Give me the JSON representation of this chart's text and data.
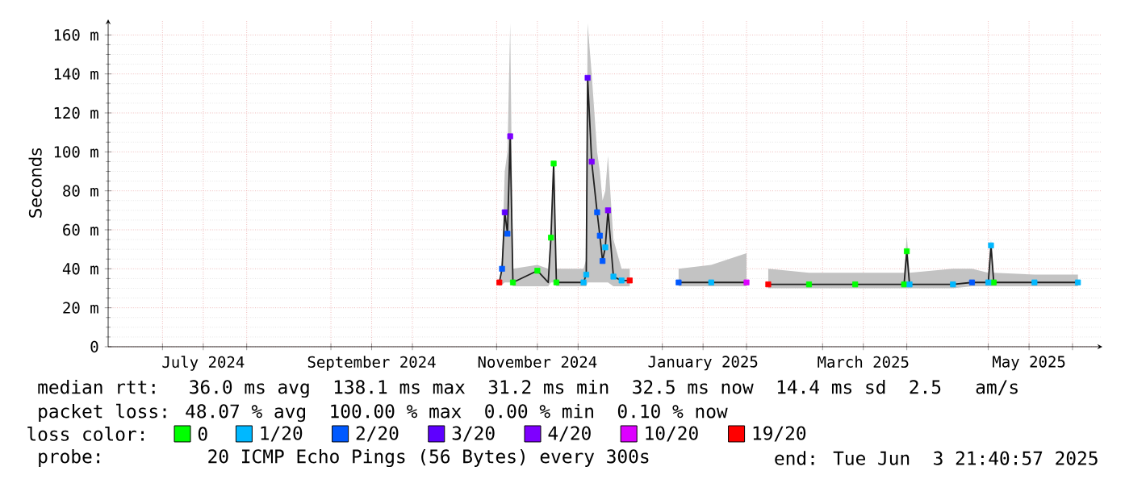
{
  "chart_data": {
    "type": "line",
    "ylabel": "Seconds",
    "legend_title": "loss color:",
    "legend": "bottom",
    "grid": true,
    "xlim": [
      "2024-06-11",
      "2025-06-12"
    ],
    "xticks": [
      {
        "value": "2024-07-01",
        "label": null
      },
      {
        "value": "2024-07-16",
        "label": "July 2024"
      },
      {
        "value": "2024-08-01",
        "label": null
      },
      {
        "value": "2024-09-01",
        "label": null
      },
      {
        "value": "2024-09-16",
        "label": "September 2024"
      },
      {
        "value": "2024-10-01",
        "label": null
      },
      {
        "value": "2024-11-01",
        "label": null
      },
      {
        "value": "2024-11-16",
        "label": "November 2024"
      },
      {
        "value": "2024-12-01",
        "label": null
      },
      {
        "value": "2025-01-01",
        "label": null
      },
      {
        "value": "2025-01-16",
        "label": "January 2025"
      },
      {
        "value": "2025-02-01",
        "label": null
      },
      {
        "value": "2025-03-01",
        "label": null
      },
      {
        "value": "2025-03-16",
        "label": "March 2025"
      },
      {
        "value": "2025-04-01",
        "label": null
      },
      {
        "value": "2025-05-01",
        "label": null
      },
      {
        "value": "2025-05-16",
        "label": "May 2025"
      },
      {
        "value": "2025-06-01",
        "label": null
      }
    ],
    "ylim": [
      0,
      168
    ],
    "yticks": [
      0,
      {
        "value": 20,
        "label": "20 m"
      },
      {
        "value": 40,
        "label": "40 m"
      },
      {
        "value": 60,
        "label": "60 m"
      },
      {
        "value": 80,
        "label": "80 m"
      },
      {
        "value": 100,
        "label": "100 m"
      },
      {
        "value": 120,
        "label": "120 m"
      },
      {
        "value": 140,
        "label": "140 m"
      },
      {
        "value": 160,
        "label": "160 m"
      }
    ],
    "series": [
      {
        "color": "#202020",
        "marker": "none",
        "x": [
          "2024-11-02",
          "2024-11-03",
          "2024-11-04",
          "2024-11-05",
          "2024-11-06",
          "2024-11-07",
          "2024-11-16",
          "2024-11-20",
          "2024-11-21",
          "2024-11-22",
          "2024-11-23",
          "2024-12-03",
          "2024-12-04",
          "2024-12-04T12:00",
          "2024-12-06",
          "2024-12-08",
          "2024-12-09",
          "2024-12-10",
          "2024-12-11",
          "2024-12-12",
          "2024-12-14",
          "2024-12-17",
          "2024-12-20",
          "2024-12-28",
          "2025-01-07",
          "2025-01-19",
          "2025-02-01",
          "2025-02-05",
          "2025-02-09",
          "2025-02-24",
          "2025-03-13",
          "2025-03-31",
          "2025-04-01",
          "2025-04-02",
          "2025-04-18",
          "2025-04-25",
          "2025-05-01",
          "2025-05-02",
          "2025-05-03",
          "2025-05-18",
          "2025-06-03"
        ],
        "values": [
          33,
          40,
          69,
          58,
          108,
          33,
          39,
          33,
          56,
          94,
          33,
          33,
          37,
          138,
          95,
          69,
          57,
          44,
          51,
          70,
          36,
          34,
          34,
          null,
          33,
          33,
          33,
          null,
          32,
          32,
          32,
          32,
          49,
          32,
          32,
          33,
          33,
          52,
          33,
          33,
          33
        ],
        "lower": [
          31,
          32,
          33,
          33,
          33,
          31,
          31,
          31,
          33,
          33,
          31,
          31,
          31,
          33,
          33,
          33,
          33,
          33,
          33,
          33,
          31,
          31,
          31,
          null,
          31,
          31,
          31,
          null,
          30,
          30,
          30,
          30,
          30,
          30,
          30,
          31,
          31,
          31,
          31,
          31,
          31
        ],
        "upper": [
          33,
          45,
          90,
          100,
          166,
          40,
          42,
          40,
          60,
          95,
          40,
          40,
          45,
          166,
          140,
          100,
          90,
          75,
          80,
          98,
          55,
          40,
          40,
          null,
          40,
          42,
          48,
          null,
          40,
          38,
          38,
          38,
          57,
          38,
          40,
          40,
          38,
          55,
          38,
          37,
          37
        ]
      },
      {
        "type": "scatter",
        "name": "0",
        "color": "#00ff00",
        "marker": "square",
        "x": [
          "2024-11-07",
          "2024-11-16",
          "2024-11-21",
          "2024-11-22",
          "2024-11-23",
          "2025-02-24",
          "2025-03-13",
          "2025-03-31",
          "2025-04-01",
          "2025-05-03"
        ],
        "values": [
          33,
          39,
          56,
          94,
          33,
          32,
          32,
          32,
          49,
          33
        ]
      },
      {
        "type": "scatter",
        "name": "1/20",
        "color": "#00b8ff",
        "marker": "square",
        "x": [
          "2024-12-03",
          "2024-12-04",
          "2024-12-11",
          "2024-12-14",
          "2024-12-17",
          "2025-01-19",
          "2025-04-02",
          "2025-04-18",
          "2025-05-01",
          "2025-05-02",
          "2025-05-18",
          "2025-06-03"
        ],
        "values": [
          33,
          37,
          51,
          36,
          34,
          33,
          32,
          32,
          33,
          52,
          33,
          33
        ]
      },
      {
        "type": "scatter",
        "name": "2/20",
        "color": "#0059ff",
        "marker": "square",
        "x": [
          "2024-11-03",
          "2024-11-05",
          "2024-12-08",
          "2024-12-09",
          "2024-12-10",
          "2025-01-07",
          "2025-04-25"
        ],
        "values": [
          40,
          58,
          69,
          57,
          44,
          33,
          33
        ]
      },
      {
        "type": "scatter",
        "name": "3/20",
        "color": "#5e00ff",
        "marker": "square",
        "x": [
          "2024-11-04",
          "2024-12-04T12:00"
        ],
        "values": [
          69,
          138
        ]
      },
      {
        "type": "scatter",
        "name": "4/20",
        "color": "#7e00ff",
        "marker": "square",
        "x": [
          "2024-11-06",
          "2024-12-06",
          "2024-12-12"
        ],
        "values": [
          108,
          95,
          70
        ]
      },
      {
        "type": "scatter",
        "name": "10/20",
        "color": "#dd00ff",
        "marker": "square",
        "x": [
          "2025-02-01"
        ],
        "values": [
          33
        ]
      },
      {
        "type": "scatter",
        "name": "19/20",
        "color": "#ff0000",
        "marker": "square",
        "x": [
          "2024-11-02",
          "2024-12-20",
          "2025-02-09"
        ],
        "values": [
          33,
          34,
          32
        ]
      }
    ],
    "annotations": [
      "median rtt:  36.0 ms avg  138.1 ms max  31.2 ms min  32.5 ms now  14.4 ms sd  2.5   am/s",
      "packet loss: 48.07 % avg  100.00 % max  0.00 % min  0.10 % now",
      "probe:       20 ICMP Echo Pings (56 Bytes) every 300s",
      "end: Tue Jun  3 21:40:57 2025"
    ]
  }
}
